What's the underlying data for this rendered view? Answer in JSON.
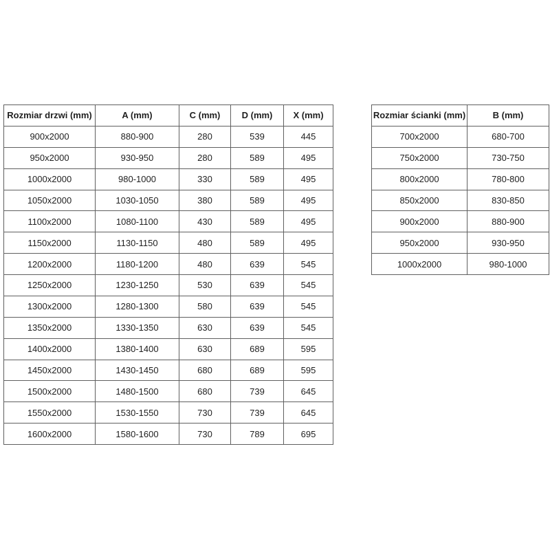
{
  "page": {
    "background_color": "#ffffff",
    "text_color": "#1f1f1f",
    "border_color": "#5f5f5f"
  },
  "door_table": {
    "headers": [
      "Rozmiar drzwi (mm)",
      "A (mm)",
      "C (mm)",
      "D (mm)",
      "X (mm)"
    ],
    "rows": [
      [
        "900x2000",
        "880-900",
        "280",
        "539",
        "445"
      ],
      [
        "950x2000",
        "930-950",
        "280",
        "589",
        "495"
      ],
      [
        "1000x2000",
        "980-1000",
        "330",
        "589",
        "495"
      ],
      [
        "1050x2000",
        "1030-1050",
        "380",
        "589",
        "495"
      ],
      [
        "1100x2000",
        "1080-1100",
        "430",
        "589",
        "495"
      ],
      [
        "1150x2000",
        "1130-1150",
        "480",
        "589",
        "495"
      ],
      [
        "1200x2000",
        "1180-1200",
        "480",
        "639",
        "545"
      ],
      [
        "1250x2000",
        "1230-1250",
        "530",
        "639",
        "545"
      ],
      [
        "1300x2000",
        "1280-1300",
        "580",
        "639",
        "545"
      ],
      [
        "1350x2000",
        "1330-1350",
        "630",
        "639",
        "545"
      ],
      [
        "1400x2000",
        "1380-1400",
        "630",
        "689",
        "595"
      ],
      [
        "1450x2000",
        "1430-1450",
        "680",
        "689",
        "595"
      ],
      [
        "1500x2000",
        "1480-1500",
        "680",
        "739",
        "645"
      ],
      [
        "1550x2000",
        "1530-1550",
        "730",
        "739",
        "645"
      ],
      [
        "1600x2000",
        "1580-1600",
        "730",
        "789",
        "695"
      ]
    ]
  },
  "wall_table": {
    "headers": [
      "Rozmiar ścianki (mm)",
      "B (mm)"
    ],
    "rows": [
      [
        "700x2000",
        "680-700"
      ],
      [
        "750x2000",
        "730-750"
      ],
      [
        "800x2000",
        "780-800"
      ],
      [
        "850x2000",
        "830-850"
      ],
      [
        "900x2000",
        "880-900"
      ],
      [
        "950x2000",
        "930-950"
      ],
      [
        "1000x2000",
        "980-1000"
      ]
    ]
  }
}
